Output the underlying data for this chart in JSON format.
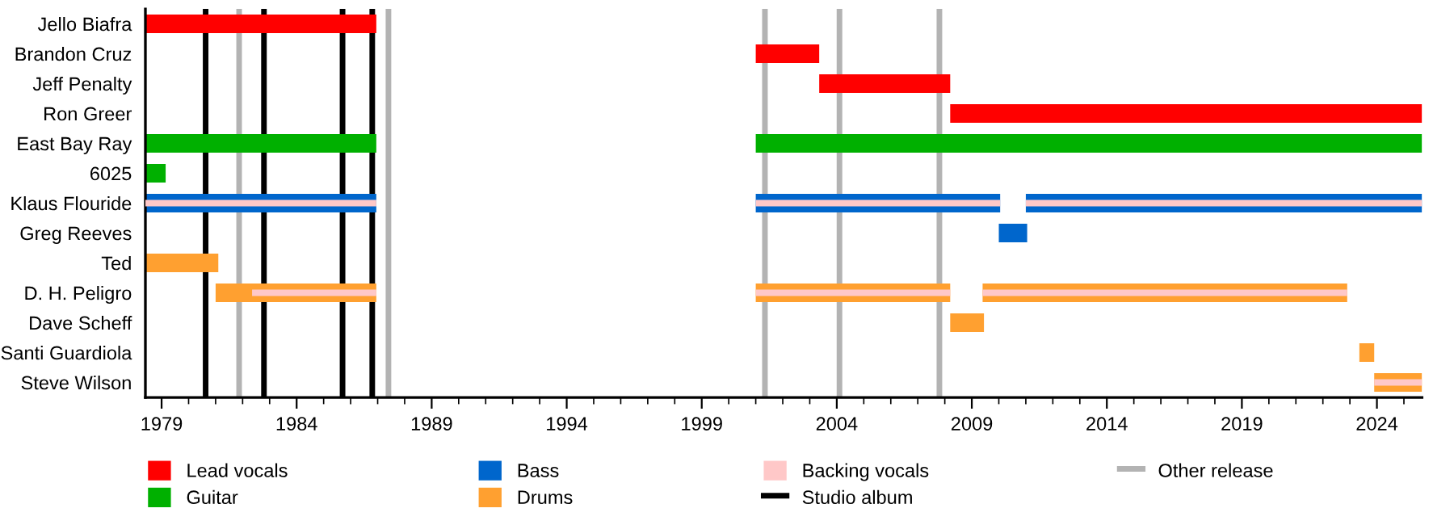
{
  "chart_data": {
    "type": "bar",
    "orientation": "horizontal",
    "legend": "bottom",
    "grid": false,
    "categories": [
      "Jello Biafra",
      "Brandon Cruz",
      "Jeff Penalty",
      "Ron Greer",
      "East Bay Ray",
      "6025",
      "Klaus Flouride",
      "Greg Reeves",
      "Ted",
      "D. H. Peligro",
      "Dave Scheff",
      "Santi Guardiola",
      "Steve Wilson"
    ],
    "xlim": [
      1978.4,
      2025.67
    ],
    "xticks": [
      1979,
      {
        "value": 1980,
        "label": null
      },
      {
        "value": 1981,
        "label": null
      },
      {
        "value": 1982,
        "label": null
      },
      {
        "value": 1983,
        "label": null
      },
      1984,
      {
        "value": 1985,
        "label": null
      },
      {
        "value": 1986,
        "label": null
      },
      {
        "value": 1987,
        "label": null
      },
      {
        "value": 1988,
        "label": null
      },
      1989,
      {
        "value": 1990,
        "label": null
      },
      {
        "value": 1991,
        "label": null
      },
      {
        "value": 1992,
        "label": null
      },
      {
        "value": 1993,
        "label": null
      },
      1994,
      {
        "value": 1995,
        "label": null
      },
      {
        "value": 1996,
        "label": null
      },
      {
        "value": 1997,
        "label": null
      },
      {
        "value": 1998,
        "label": null
      },
      1999,
      {
        "value": 2000,
        "label": null
      },
      {
        "value": 2001,
        "label": null
      },
      {
        "value": 2002,
        "label": null
      },
      {
        "value": 2003,
        "label": null
      },
      2004,
      {
        "value": 2005,
        "label": null
      },
      {
        "value": 2006,
        "label": null
      },
      {
        "value": 2007,
        "label": null
      },
      {
        "value": 2008,
        "label": null
      },
      2009,
      {
        "value": 2010,
        "label": null
      },
      {
        "value": 2011,
        "label": null
      },
      {
        "value": 2012,
        "label": null
      },
      {
        "value": 2013,
        "label": null
      },
      2014,
      {
        "value": 2015,
        "label": null
      },
      {
        "value": 2016,
        "label": null
      },
      {
        "value": 2017,
        "label": null
      },
      {
        "value": 2018,
        "label": null
      },
      2019,
      {
        "value": 2020,
        "label": null
      },
      {
        "value": 2021,
        "label": null
      },
      {
        "value": 2022,
        "label": null
      },
      {
        "value": 2023,
        "label": null
      },
      2024,
      {
        "value": 2025,
        "label": null
      }
    ],
    "series": [
      {
        "name": "Lead vocals",
        "color": "#ff0000",
        "base": [
          1978.4,
          2001.0,
          2003.35,
          2008.2,
          null,
          null,
          null,
          null,
          null,
          null,
          null,
          null,
          null
        ],
        "values": [
          8.55,
          2.35,
          4.85,
          17.47,
          null,
          null,
          null,
          null,
          null,
          null,
          null,
          null,
          null
        ]
      },
      {
        "name": "Guitar",
        "color": "#00b000",
        "base": [
          null,
          null,
          null,
          null,
          1978.4,
          1978.4,
          null,
          null,
          null,
          null,
          null,
          null,
          null
        ],
        "values": [
          null,
          null,
          null,
          null,
          8.55,
          0.75,
          null,
          null,
          null,
          null,
          null,
          null,
          null
        ]
      },
      {
        "color": "#00b000",
        "base": [
          null,
          null,
          null,
          null,
          2001.0,
          null,
          null,
          null,
          null,
          null,
          null,
          null,
          null
        ],
        "values": [
          null,
          null,
          null,
          null,
          24.67,
          null,
          null,
          null,
          null,
          null,
          null,
          null,
          null
        ]
      },
      {
        "name": "Bass",
        "color": "#0066cc",
        "base": [
          null,
          null,
          null,
          null,
          null,
          null,
          1978.4,
          2010.0,
          null,
          null,
          null,
          null,
          null
        ],
        "values": [
          null,
          null,
          null,
          null,
          null,
          null,
          8.55,
          1.05,
          null,
          null,
          null,
          null,
          null
        ]
      },
      {
        "color": "#0066cc",
        "base": [
          null,
          null,
          null,
          null,
          null,
          null,
          2001.0,
          null,
          null,
          null,
          null,
          null,
          null
        ],
        "values": [
          null,
          null,
          null,
          null,
          null,
          null,
          9.05,
          null,
          null,
          null,
          null,
          null,
          null
        ]
      },
      {
        "color": "#0066cc",
        "base": [
          null,
          null,
          null,
          null,
          null,
          null,
          2011.0,
          null,
          null,
          null,
          null,
          null,
          null
        ],
        "values": [
          null,
          null,
          null,
          null,
          null,
          null,
          14.67,
          null,
          null,
          null,
          null,
          null,
          null
        ]
      },
      {
        "name": "Drums",
        "color": "#ffa030",
        "base": [
          null,
          null,
          null,
          null,
          null,
          null,
          null,
          null,
          1978.4,
          1981.0,
          2008.2,
          2023.35,
          2023.9
        ],
        "values": [
          null,
          null,
          null,
          null,
          null,
          null,
          null,
          null,
          2.7,
          5.95,
          1.25,
          0.55,
          1.77
        ]
      },
      {
        "color": "#ffa030",
        "base": [
          null,
          null,
          null,
          null,
          null,
          null,
          null,
          null,
          null,
          2001.0,
          null,
          null,
          null
        ],
        "values": [
          null,
          null,
          null,
          null,
          null,
          null,
          null,
          null,
          null,
          7.2,
          null,
          null,
          null
        ]
      },
      {
        "color": "#ffa030",
        "base": [
          null,
          null,
          null,
          null,
          null,
          null,
          null,
          null,
          null,
          2009.4,
          null,
          null,
          null
        ],
        "values": [
          null,
          null,
          null,
          null,
          null,
          null,
          null,
          null,
          null,
          13.5,
          null,
          null,
          null
        ]
      },
      {
        "name": "Backing vocals",
        "color": "#ffc8c8",
        "base": [
          null,
          null,
          null,
          null,
          null,
          null,
          1978.4,
          null,
          null,
          1982.35,
          null,
          null,
          2023.9
        ],
        "values": [
          null,
          null,
          null,
          null,
          null,
          null,
          8.55,
          null,
          null,
          4.6,
          null,
          null,
          1.77
        ]
      },
      {
        "color": "#ffc8c8",
        "base": [
          null,
          null,
          null,
          null,
          null,
          null,
          2001.0,
          null,
          null,
          2001.0,
          null,
          null,
          null
        ],
        "values": [
          null,
          null,
          null,
          null,
          null,
          null,
          9.05,
          null,
          null,
          7.2,
          null,
          null,
          null
        ]
      },
      {
        "color": "#ffc8c8",
        "base": [
          null,
          null,
          null,
          null,
          null,
          null,
          2011.0,
          null,
          null,
          2009.4,
          null,
          null,
          null
        ],
        "values": [
          null,
          null,
          null,
          null,
          null,
          null,
          14.67,
          null,
          null,
          13.5,
          null,
          null,
          null
        ]
      }
    ],
    "ref_lines": [
      {
        "axis": "x",
        "value": 1980.63,
        "label": "Studio album",
        "color": "#000000"
      },
      {
        "axis": "x",
        "value": 1982.79,
        "color": "#000000"
      },
      {
        "axis": "x",
        "value": 1985.7,
        "color": "#000000"
      },
      {
        "axis": "x",
        "value": 1986.8,
        "color": "#000000"
      },
      {
        "axis": "x",
        "value": 1981.87,
        "label": "Other release",
        "color": "#b3b3b3"
      },
      {
        "axis": "x",
        "value": 1987.4,
        "color": "#b3b3b3"
      },
      {
        "axis": "x",
        "value": 2001.34,
        "color": "#b3b3b3"
      },
      {
        "axis": "x",
        "value": 2004.1,
        "color": "#b3b3b3"
      },
      {
        "axis": "x",
        "value": 2007.8,
        "color": "#b3b3b3"
      }
    ]
  }
}
